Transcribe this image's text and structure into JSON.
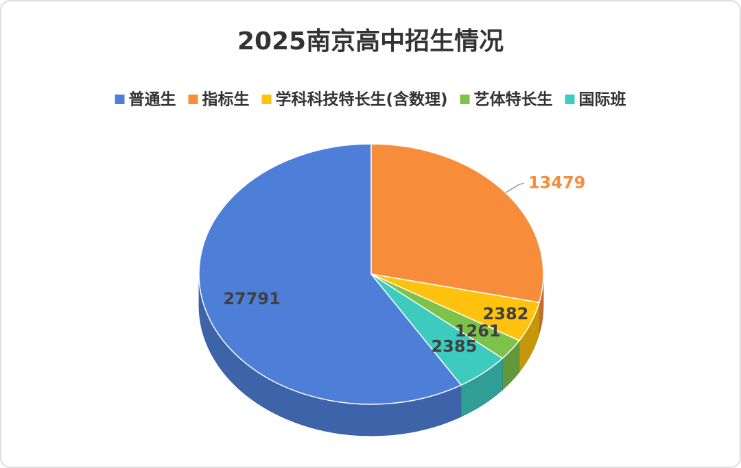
{
  "chart_data": {
    "type": "pie3d",
    "title": "2025南京高中招生情况",
    "categories": [
      "普通生",
      "指标生",
      "学科科技特长生(含数理)",
      "艺体特长生",
      "国际班"
    ],
    "values": [
      27791,
      13479,
      2382,
      1261,
      2385
    ],
    "colors": [
      "#4e7fd8",
      "#f78d3a",
      "#ffc20e",
      "#7dc34a",
      "#3dcabf"
    ],
    "legend": "top"
  }
}
